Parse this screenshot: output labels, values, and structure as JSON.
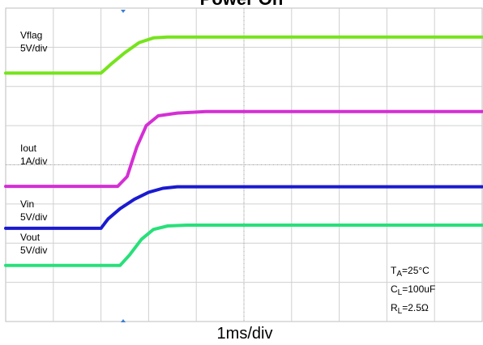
{
  "chart_data": {
    "type": "line",
    "title": "Power On",
    "xlabel": "1ms/div",
    "x_divisions": 10,
    "y_divisions": 8,
    "xlim": [
      0,
      10
    ],
    "ylim": [
      0,
      8
    ],
    "grid": true,
    "series": [
      {
        "name": "Vflag",
        "scale": "5V/div",
        "color": "#76e41c",
        "x": [
          0,
          2.0,
          2.2,
          2.5,
          2.8,
          3.1,
          3.4,
          10
        ],
        "y": [
          6.34,
          6.34,
          6.56,
          6.86,
          7.12,
          7.24,
          7.26,
          7.26
        ]
      },
      {
        "name": "Iout",
        "scale": "1A/div",
        "color": "#d42fd4",
        "x": [
          0,
          2.35,
          2.55,
          2.75,
          2.95,
          3.2,
          3.6,
          4.2,
          10
        ],
        "y": [
          3.45,
          3.45,
          3.7,
          4.45,
          5.0,
          5.25,
          5.32,
          5.36,
          5.36
        ]
      },
      {
        "name": "Vin",
        "scale": "5V/div",
        "color": "#1a1ad0",
        "x": [
          0,
          2.0,
          2.15,
          2.4,
          2.7,
          3.0,
          3.3,
          3.6,
          10
        ],
        "y": [
          2.38,
          2.38,
          2.62,
          2.88,
          3.12,
          3.3,
          3.4,
          3.44,
          3.44
        ]
      },
      {
        "name": "Vout",
        "scale": "5V/div",
        "color": "#28e07a",
        "x": [
          0,
          2.4,
          2.6,
          2.85,
          3.1,
          3.4,
          3.8,
          10
        ],
        "y": [
          1.43,
          1.43,
          1.7,
          2.1,
          2.35,
          2.44,
          2.46,
          2.46
        ]
      }
    ],
    "conditions": {
      "ta": {
        "main": "T",
        "sub": "A",
        "rest": "=25°C"
      },
      "cl": {
        "main": "C",
        "sub": "L",
        "rest": "=100uF"
      },
      "rl": {
        "main": "R",
        "sub": "L",
        "rest": "=2.5Ω"
      }
    }
  }
}
